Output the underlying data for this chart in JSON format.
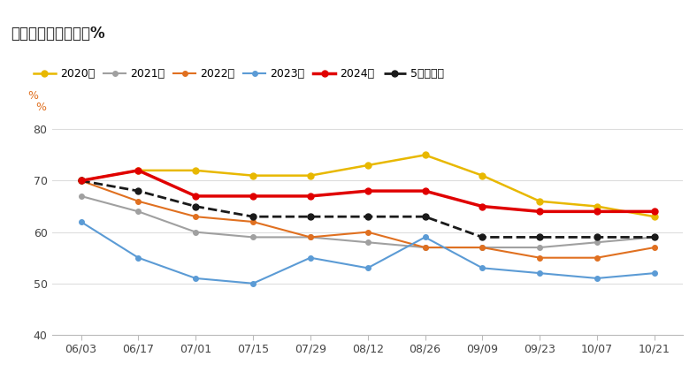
{
  "title": "美国大豆生长优良率%",
  "ylabel": "%",
  "x_labels": [
    "06/03",
    "06/17",
    "07/01",
    "07/15",
    "07/29",
    "08/12",
    "08/26",
    "09/09",
    "09/23",
    "10/07",
    "10/21"
  ],
  "ylim": [
    40,
    82
  ],
  "yticks": [
    40,
    50,
    60,
    70,
    80
  ],
  "series": {
    "2020年": {
      "color": "#E8B800",
      "linewidth": 1.8,
      "linestyle": "-",
      "marker": "o",
      "markersize": 5,
      "values": [
        70,
        72,
        72,
        71,
        71,
        73,
        75,
        71,
        66,
        65,
        63
      ]
    },
    "2021年": {
      "color": "#A0A0A0",
      "linewidth": 1.5,
      "linestyle": "-",
      "marker": "o",
      "markersize": 4,
      "values": [
        67,
        64,
        60,
        59,
        59,
        58,
        57,
        57,
        57,
        58,
        59
      ]
    },
    "2022年": {
      "color": "#E07020",
      "linewidth": 1.5,
      "linestyle": "-",
      "marker": "o",
      "markersize": 4,
      "values": [
        70,
        66,
        63,
        62,
        59,
        60,
        57,
        57,
        55,
        55,
        57
      ]
    },
    "2023年": {
      "color": "#5B9BD5",
      "linewidth": 1.5,
      "linestyle": "-",
      "marker": "o",
      "markersize": 4,
      "values": [
        62,
        55,
        51,
        50,
        55,
        53,
        59,
        53,
        52,
        51,
        52
      ]
    },
    "2024年": {
      "color": "#E00000",
      "linewidth": 2.5,
      "linestyle": "-",
      "marker": "o",
      "markersize": 5,
      "values": [
        70,
        72,
        67,
        67,
        67,
        68,
        68,
        65,
        64,
        64,
        64
      ]
    },
    "5年平均值": {
      "color": "#1A1A1A",
      "linewidth": 2.0,
      "linestyle": "--",
      "marker": "o",
      "markersize": 5,
      "values": [
        70,
        68,
        65,
        63,
        63,
        63,
        63,
        59,
        59,
        59,
        59
      ]
    }
  },
  "background_color": "#FFFFFF",
  "plot_bg_color": "#FFFFFF",
  "grid_color": "#DDDDDD",
  "title_fontsize": 12,
  "legend_fontsize": 9,
  "tick_fontsize": 9,
  "top_bar_color": "#C0392B",
  "title_bg_color": "#F0F0F0"
}
